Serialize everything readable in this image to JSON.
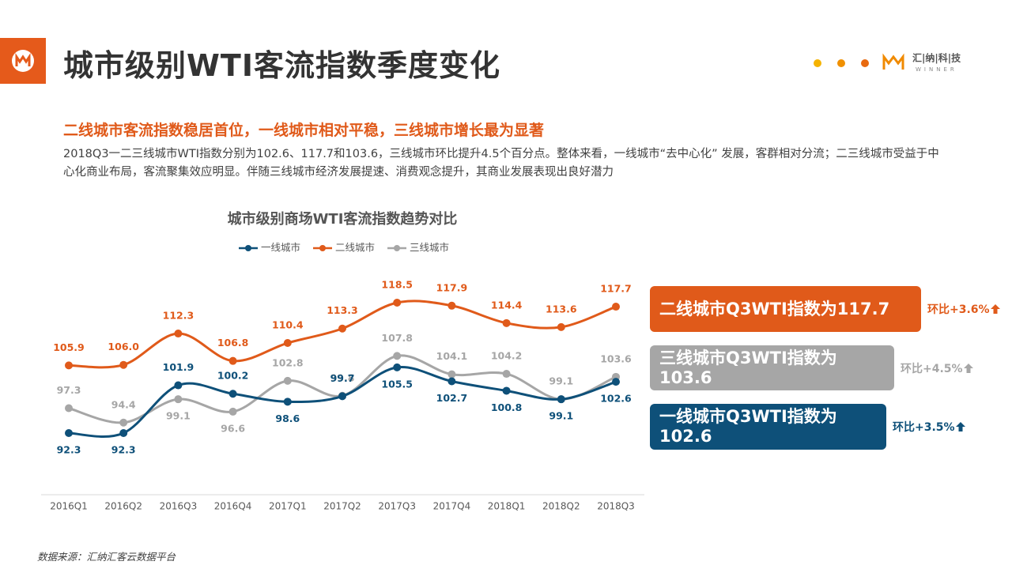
{
  "header": {
    "title": "城市级别WTI客流指数季度变化",
    "brand": "汇|纳|科|技",
    "brand_sub": "WINNER"
  },
  "headline": "二线城市客流指数稳居首位，一线城市相对平稳，三线城市增长最为显著",
  "body": "2018Q3一二三线城市WTI指数分别为102.6、117.7和103.6，三线城市环比提升4.5个百分点。整体来看，一线城市“去中心化” 发展，客群相对分流；二三线城市受益于中心化商业布局，客流聚集效应明显。伴随三线城市经济发展提速、消费观念提升，其商业发展表现出良好潜力",
  "chart_data": {
    "type": "line",
    "title": "城市级别商场WTI客流指数趋势对比",
    "categories": [
      "2016Q1",
      "2016Q2",
      "2016Q3",
      "2016Q4",
      "2017Q1",
      "2017Q2",
      "2017Q3",
      "2017Q4",
      "2018Q1",
      "2018Q2",
      "2018Q3"
    ],
    "series": [
      {
        "name": "一线城市",
        "color": "#0e5079",
        "values": [
          92.3,
          92.3,
          101.9,
          100.2,
          98.6,
          99.7,
          105.5,
          102.7,
          100.8,
          99.1,
          102.6
        ]
      },
      {
        "name": "二线城市",
        "color": "#e05a1a",
        "values": [
          105.9,
          106.0,
          112.3,
          106.8,
          110.4,
          113.3,
          118.5,
          117.9,
          114.4,
          113.6,
          117.7
        ],
        "value_labels": [
          "105.9",
          "106.0",
          "112.3",
          "106.8",
          "110.4",
          "113.3",
          "118.5",
          "117.9",
          "114.4",
          "113.6",
          "117.7"
        ]
      },
      {
        "name": "三线城市",
        "color": "#a6a6a6",
        "values": [
          97.3,
          94.4,
          99.1,
          96.6,
          102.8,
          99.8,
          107.8,
          104.1,
          104.2,
          99.1,
          103.6
        ]
      }
    ],
    "legend": "top"
  },
  "callouts": [
    {
      "text": "二线城市Q3WTI指数为117.7",
      "change": "环比+3.6%",
      "color": "#e05a1a"
    },
    {
      "text": "三线城市Q3WTI指数为103.6",
      "change": "环比+4.5%",
      "color": "#a6a6a6"
    },
    {
      "text": "一线城市Q3WTI指数为102.6",
      "change": "环比+3.5%",
      "color": "#0e5079"
    }
  ],
  "source": "数据来源：汇纳汇客云数据平台"
}
